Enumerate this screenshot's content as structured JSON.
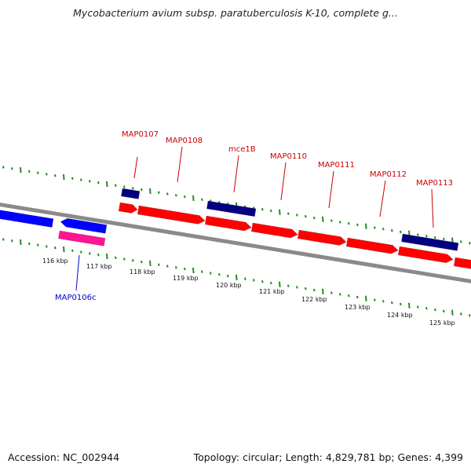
{
  "title": "Mycobacterium avium subsp. paratuberculosis K-10, complete g...",
  "footer": {
    "accession": "Accession: NC_002944",
    "summary": "Topology: circular; Length: 4,829,781 bp; Genes: 4,399"
  },
  "colors": {
    "forward_gene": "#ff0000",
    "reverse_gene": "#0000ff",
    "forward_highlight": "#000080",
    "reverse_highlight": "#ff1493",
    "backbone": "#8a8a8a",
    "ticks": "#228b22",
    "forward_label": "#cc0000",
    "reverse_label": "#0000cc"
  },
  "scale": {
    "unit": "kbp",
    "labels": [
      "116 kbp",
      "117 kbp",
      "118 kbp",
      "119 kbp",
      "120 kbp",
      "121 kbp",
      "122 kbp",
      "123 kbp",
      "124 kbp",
      "125 kbp"
    ]
  },
  "genes": [
    {
      "label": "MAP0107",
      "strand": "forward"
    },
    {
      "label": "MAP0108",
      "strand": "forward"
    },
    {
      "label": "mce1B",
      "strand": "forward"
    },
    {
      "label": "MAP0110",
      "strand": "forward"
    },
    {
      "label": "MAP0111",
      "strand": "forward"
    },
    {
      "label": "MAP0112",
      "strand": "forward"
    },
    {
      "label": "MAP0113",
      "strand": "forward"
    },
    {
      "label": "MAP0106c",
      "strand": "reverse"
    }
  ]
}
